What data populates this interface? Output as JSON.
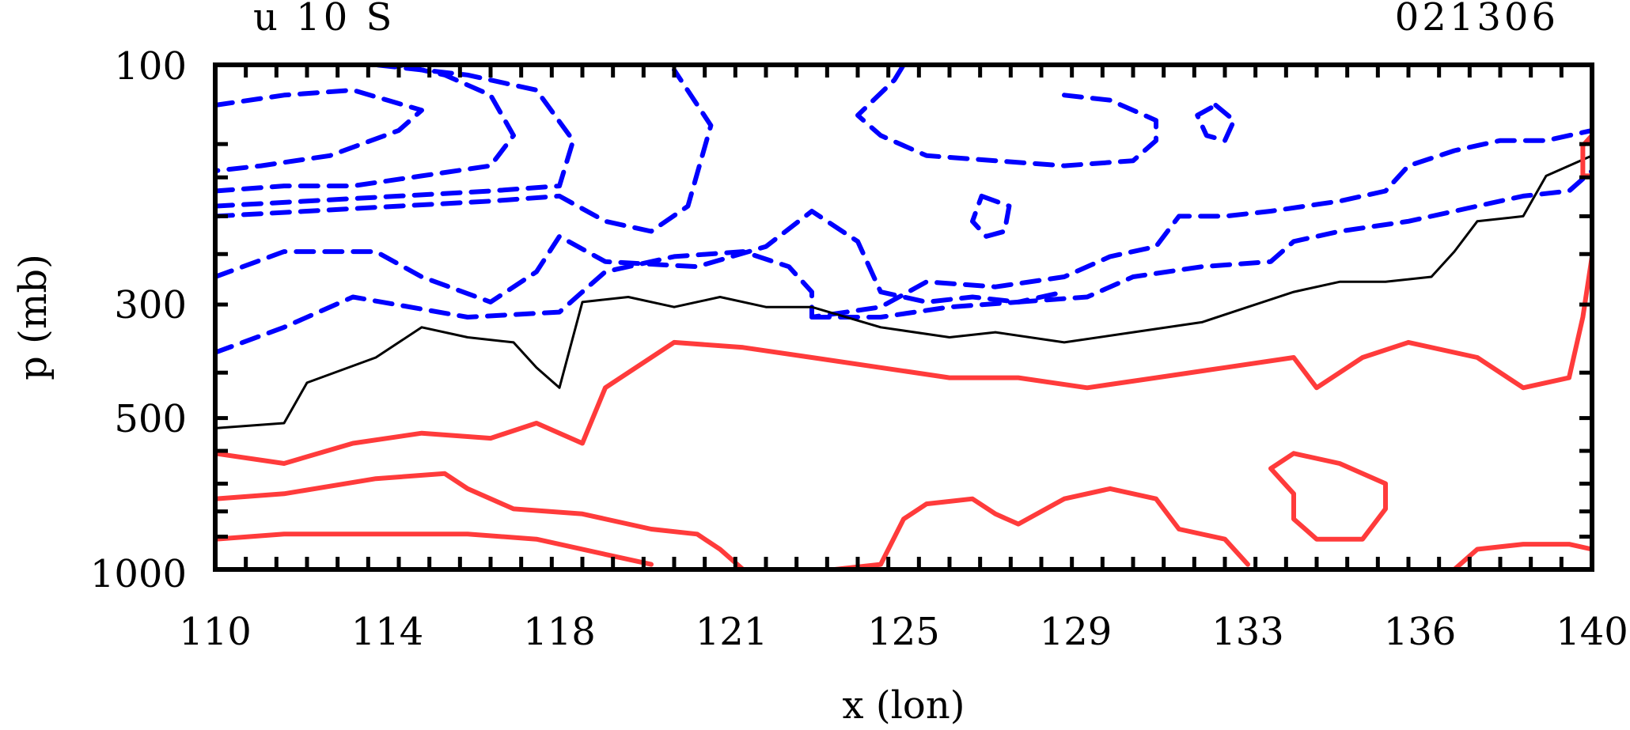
{
  "chart_data": {
    "type": "contour",
    "title_left": "u 10 S",
    "title_right": "021306",
    "xlabel": "x (lon)",
    "ylabel": "p (mb)",
    "xlim": [
      110,
      140
    ],
    "x_ticks": [
      "110",
      "114",
      "118",
      "121",
      "125",
      "129",
      "133",
      "136",
      "140"
    ],
    "y_ticks": [
      "100",
      "300",
      "500",
      "1000"
    ],
    "colors": {
      "negative": "#0000ff",
      "zero": "#000000",
      "positive": "#ff3b3b"
    },
    "series": [
      {
        "kind": "negative",
        "style": "dashed",
        "points": [
          [
            110.0,
            0.08
          ],
          [
            111.5,
            0.06
          ],
          [
            113.0,
            0.05
          ],
          [
            114.5,
            0.09
          ],
          [
            114.0,
            0.13
          ],
          [
            112.5,
            0.18
          ],
          [
            111.0,
            0.2
          ],
          [
            110.0,
            0.21
          ]
        ]
      },
      {
        "kind": "negative",
        "style": "dashed",
        "points": [
          [
            110.0,
            0.25
          ],
          [
            111.5,
            0.24
          ],
          [
            113.0,
            0.24
          ],
          [
            114.5,
            0.22
          ],
          [
            116.0,
            0.2
          ],
          [
            116.5,
            0.14
          ],
          [
            116.0,
            0.06
          ],
          [
            115.0,
            0.02
          ],
          [
            114.0,
            0.0
          ]
        ]
      },
      {
        "kind": "negative",
        "style": "dashed",
        "points": [
          [
            110.0,
            0.28
          ],
          [
            112.0,
            0.27
          ],
          [
            114.0,
            0.26
          ],
          [
            116.0,
            0.25
          ],
          [
            117.5,
            0.24
          ],
          [
            117.8,
            0.15
          ],
          [
            117.0,
            0.05
          ],
          [
            115.5,
            0.02
          ],
          [
            113.5,
            0.0
          ]
        ]
      },
      {
        "kind": "negative",
        "style": "dashed",
        "points": [
          [
            110.0,
            0.3
          ],
          [
            112.0,
            0.29
          ],
          [
            114.0,
            0.28
          ],
          [
            116.0,
            0.27
          ],
          [
            117.5,
            0.26
          ],
          [
            118.5,
            0.31
          ],
          [
            119.5,
            0.33
          ],
          [
            120.3,
            0.28
          ],
          [
            120.8,
            0.12
          ],
          [
            120.0,
            0.01
          ]
        ]
      },
      {
        "kind": "negative",
        "style": "dashed",
        "points": [
          [
            110.0,
            0.42
          ],
          [
            111.5,
            0.37
          ],
          [
            113.5,
            0.37
          ],
          [
            114.5,
            0.42
          ],
          [
            116.0,
            0.47
          ],
          [
            117.0,
            0.41
          ],
          [
            117.5,
            0.34
          ],
          [
            118.5,
            0.39
          ],
          [
            120.5,
            0.4
          ],
          [
            122.0,
            0.36
          ],
          [
            123.0,
            0.29
          ],
          [
            124.0,
            0.35
          ],
          [
            124.5,
            0.45
          ],
          [
            125.5,
            0.47
          ],
          [
            126.5,
            0.46
          ],
          [
            127.5,
            0.47
          ],
          [
            129.0,
            0.46
          ],
          [
            130.0,
            0.42
          ],
          [
            131.5,
            0.4
          ],
          [
            133.0,
            0.39
          ],
          [
            133.5,
            0.35
          ],
          [
            134.5,
            0.33
          ],
          [
            136.0,
            0.31
          ],
          [
            137.5,
            0.28
          ],
          [
            138.5,
            0.26
          ],
          [
            139.5,
            0.25
          ],
          [
            140.0,
            0.21
          ]
        ]
      },
      {
        "kind": "negative",
        "style": "dashed",
        "points": [
          [
            110.0,
            0.57
          ],
          [
            111.5,
            0.52
          ],
          [
            113.0,
            0.46
          ],
          [
            115.5,
            0.5
          ],
          [
            117.5,
            0.49
          ],
          [
            118.5,
            0.41
          ],
          [
            120.0,
            0.38
          ],
          [
            121.5,
            0.37
          ],
          [
            122.5,
            0.4
          ],
          [
            123.0,
            0.45
          ],
          [
            123.0,
            0.5
          ],
          [
            124.5,
            0.48
          ],
          [
            125.5,
            0.43
          ],
          [
            127.0,
            0.44
          ],
          [
            128.5,
            0.42
          ],
          [
            129.5,
            0.38
          ],
          [
            130.5,
            0.36
          ],
          [
            131.0,
            0.3
          ],
          [
            132.0,
            0.3
          ],
          [
            133.0,
            0.29
          ],
          [
            134.5,
            0.27
          ],
          [
            135.5,
            0.25
          ],
          [
            136.0,
            0.2
          ],
          [
            137.0,
            0.17
          ],
          [
            138.0,
            0.15
          ],
          [
            139.0,
            0.15
          ],
          [
            140.0,
            0.13
          ]
        ]
      },
      {
        "kind": "negative",
        "style": "dashed",
        "points": [
          [
            123.0,
            0.5
          ],
          [
            124.5,
            0.5
          ],
          [
            126.0,
            0.48
          ],
          [
            127.5,
            0.47
          ],
          [
            128.5,
            0.45
          ]
        ]
      },
      {
        "kind": "negative",
        "style": "dashed",
        "points": [
          [
            126.7,
            0.26
          ],
          [
            127.3,
            0.28
          ],
          [
            127.2,
            0.33
          ],
          [
            126.8,
            0.34
          ],
          [
            126.5,
            0.31
          ],
          [
            126.7,
            0.26
          ]
        ]
      },
      {
        "kind": "negative",
        "style": "dashed",
        "points": [
          [
            128.5,
            0.06
          ],
          [
            129.5,
            0.07
          ],
          [
            130.5,
            0.11
          ],
          [
            130.5,
            0.15
          ],
          [
            130.0,
            0.19
          ],
          [
            128.5,
            0.2
          ],
          [
            127.0,
            0.19
          ],
          [
            125.5,
            0.18
          ],
          [
            124.5,
            0.14
          ],
          [
            124.0,
            0.1
          ],
          [
            124.8,
            0.03
          ],
          [
            125.0,
            0.0
          ]
        ]
      },
      {
        "kind": "negative",
        "style": "dashed",
        "points": [
          [
            131.8,
            0.08
          ],
          [
            132.2,
            0.11
          ],
          [
            132.0,
            0.15
          ],
          [
            131.6,
            0.14
          ],
          [
            131.4,
            0.1
          ],
          [
            131.8,
            0.08
          ]
        ]
      },
      {
        "kind": "zero",
        "style": "solid",
        "points": [
          [
            110.0,
            0.72
          ],
          [
            111.5,
            0.71
          ],
          [
            112.0,
            0.63
          ],
          [
            113.5,
            0.58
          ],
          [
            114.5,
            0.52
          ],
          [
            115.5,
            0.54
          ],
          [
            116.5,
            0.55
          ],
          [
            117.0,
            0.6
          ],
          [
            117.5,
            0.64
          ],
          [
            118.0,
            0.47
          ],
          [
            119.0,
            0.46
          ],
          [
            120.0,
            0.48
          ],
          [
            121.0,
            0.46
          ],
          [
            122.0,
            0.48
          ],
          [
            123.0,
            0.48
          ],
          [
            124.5,
            0.52
          ],
          [
            126.0,
            0.54
          ],
          [
            127.0,
            0.53
          ],
          [
            128.5,
            0.55
          ],
          [
            130.0,
            0.53
          ],
          [
            131.5,
            0.51
          ],
          [
            132.5,
            0.48
          ],
          [
            133.5,
            0.45
          ],
          [
            134.5,
            0.43
          ],
          [
            135.5,
            0.43
          ],
          [
            136.5,
            0.42
          ],
          [
            137.0,
            0.37
          ],
          [
            137.5,
            0.31
          ],
          [
            138.5,
            0.3
          ],
          [
            139.0,
            0.22
          ],
          [
            140.0,
            0.18
          ]
        ]
      },
      {
        "kind": "positive",
        "style": "solid",
        "points": [
          [
            110.0,
            0.77
          ],
          [
            111.5,
            0.79
          ],
          [
            113.0,
            0.75
          ],
          [
            114.5,
            0.73
          ],
          [
            116.0,
            0.74
          ],
          [
            117.0,
            0.71
          ],
          [
            118.0,
            0.75
          ],
          [
            118.5,
            0.64
          ],
          [
            120.0,
            0.55
          ],
          [
            121.5,
            0.56
          ],
          [
            123.0,
            0.58
          ],
          [
            124.5,
            0.6
          ],
          [
            126.0,
            0.62
          ],
          [
            127.5,
            0.62
          ],
          [
            129.0,
            0.64
          ],
          [
            130.5,
            0.62
          ],
          [
            132.0,
            0.6
          ],
          [
            133.5,
            0.58
          ],
          [
            134.0,
            0.64
          ],
          [
            135.0,
            0.58
          ],
          [
            136.0,
            0.55
          ],
          [
            137.5,
            0.58
          ],
          [
            138.5,
            0.64
          ],
          [
            139.5,
            0.62
          ],
          [
            139.8,
            0.5
          ],
          [
            140.0,
            0.38
          ]
        ]
      },
      {
        "kind": "positive",
        "style": "solid",
        "points": [
          [
            110.0,
            0.86
          ],
          [
            111.5,
            0.85
          ],
          [
            113.5,
            0.82
          ],
          [
            115.0,
            0.81
          ],
          [
            115.5,
            0.84
          ],
          [
            116.5,
            0.88
          ],
          [
            118.0,
            0.89
          ],
          [
            119.5,
            0.92
          ],
          [
            120.5,
            0.93
          ],
          [
            121.0,
            0.96
          ],
          [
            121.5,
            1.0
          ]
        ]
      },
      {
        "kind": "positive",
        "style": "solid",
        "points": [
          [
            110.0,
            0.94
          ],
          [
            111.5,
            0.93
          ],
          [
            113.5,
            0.93
          ],
          [
            115.5,
            0.93
          ],
          [
            117.0,
            0.94
          ],
          [
            118.5,
            0.97
          ],
          [
            119.5,
            0.99
          ]
        ]
      },
      {
        "kind": "positive",
        "style": "solid",
        "points": [
          [
            123.5,
            1.0
          ],
          [
            124.5,
            0.99
          ],
          [
            125.0,
            0.9
          ],
          [
            125.5,
            0.87
          ],
          [
            126.5,
            0.86
          ],
          [
            127.0,
            0.89
          ],
          [
            127.5,
            0.91
          ],
          [
            128.5,
            0.86
          ],
          [
            129.5,
            0.84
          ],
          [
            130.5,
            0.86
          ],
          [
            131.0,
            0.92
          ],
          [
            132.0,
            0.94
          ],
          [
            132.5,
            0.99
          ]
        ]
      },
      {
        "kind": "positive",
        "style": "solid",
        "points": [
          [
            133.5,
            0.77
          ],
          [
            134.5,
            0.79
          ],
          [
            135.5,
            0.83
          ],
          [
            135.5,
            0.88
          ],
          [
            135.0,
            0.94
          ],
          [
            134.0,
            0.94
          ],
          [
            133.5,
            0.9
          ],
          [
            133.5,
            0.85
          ],
          [
            133.0,
            0.8
          ],
          [
            133.5,
            0.77
          ]
        ]
      },
      {
        "kind": "positive",
        "style": "solid",
        "points": [
          [
            137.0,
            1.0
          ],
          [
            137.5,
            0.96
          ],
          [
            138.5,
            0.95
          ],
          [
            139.5,
            0.95
          ],
          [
            140.0,
            0.96
          ]
        ]
      },
      {
        "kind": "positive",
        "style": "solid",
        "points": [
          [
            139.8,
            0.16
          ],
          [
            140.0,
            0.14
          ],
          [
            140.0,
            0.22
          ],
          [
            139.8,
            0.22
          ],
          [
            139.8,
            0.16
          ]
        ]
      }
    ]
  }
}
